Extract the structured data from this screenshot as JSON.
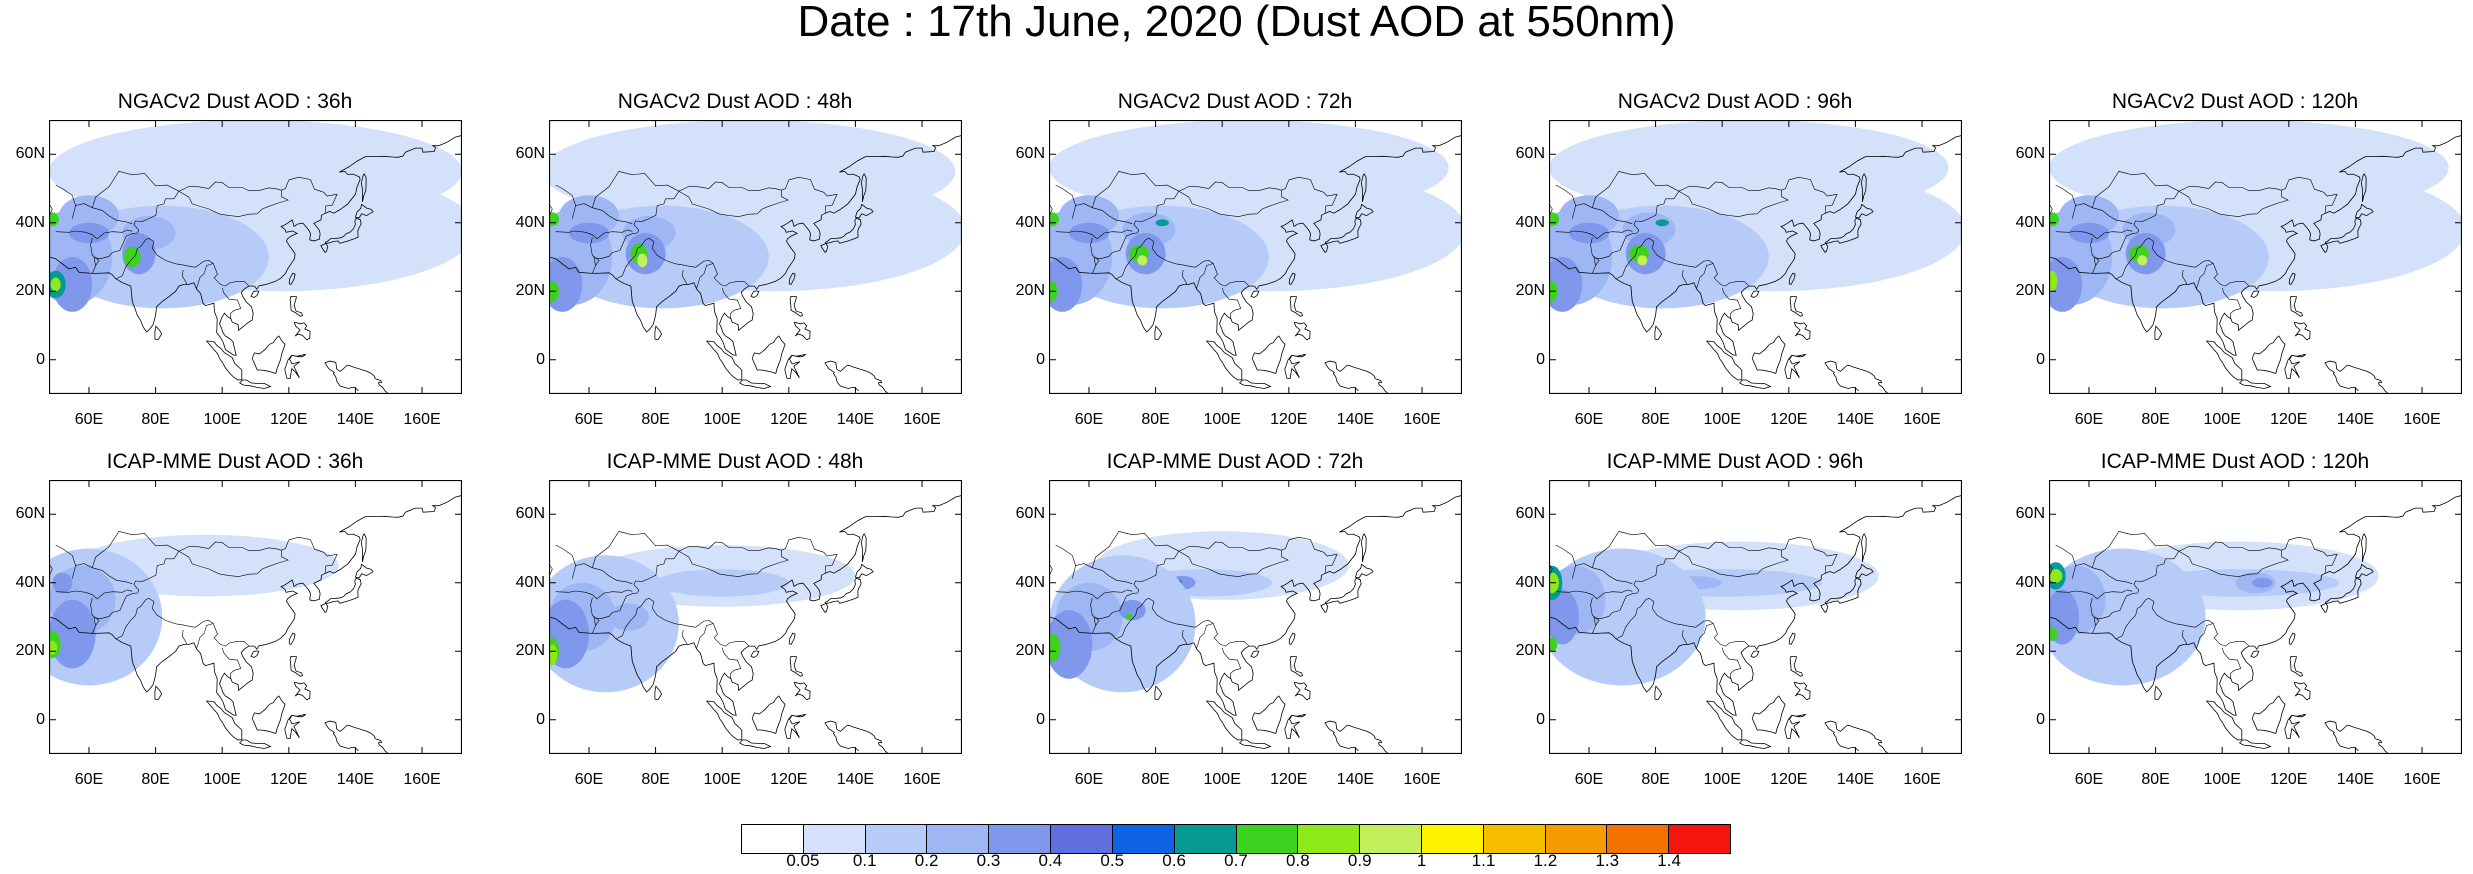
{
  "title": "Date : 17th June, 2020 (Dust AOD at 550nm)",
  "x_ticks": [
    "60E",
    "80E",
    "100E",
    "120E",
    "140E",
    "160E"
  ],
  "x_tick_values": [
    60,
    80,
    100,
    120,
    140,
    160
  ],
  "y_ticks": [
    "60N",
    "40N",
    "20N",
    "0"
  ],
  "y_tick_values": [
    60,
    40,
    20,
    0
  ],
  "map_extent": {
    "lon": [
      48,
      172
    ],
    "lat": [
      -10,
      70
    ]
  },
  "panels": [
    {
      "title": "NGACv2 Dust AOD : 36h",
      "model": "NGACv2",
      "lead": 36
    },
    {
      "title": "NGACv2 Dust AOD : 48h",
      "model": "NGACv2",
      "lead": 48
    },
    {
      "title": "NGACv2 Dust AOD : 72h",
      "model": "NGACv2",
      "lead": 72
    },
    {
      "title": "NGACv2 Dust AOD : 96h",
      "model": "NGACv2",
      "lead": 96
    },
    {
      "title": "NGACv2 Dust AOD : 120h",
      "model": "NGACv2",
      "lead": 120
    },
    {
      "title": "ICAP-MME Dust AOD : 36h",
      "model": "ICAP-MME",
      "lead": 36
    },
    {
      "title": "ICAP-MME Dust AOD : 48h",
      "model": "ICAP-MME",
      "lead": 48
    },
    {
      "title": "ICAP-MME Dust AOD : 72h",
      "model": "ICAP-MME",
      "lead": 72
    },
    {
      "title": "ICAP-MME Dust AOD : 96h",
      "model": "ICAP-MME",
      "lead": 96
    },
    {
      "title": "ICAP-MME Dust AOD : 120h",
      "model": "ICAP-MME",
      "lead": 120
    }
  ],
  "colorbar": {
    "labels": [
      "0.05",
      "0.1",
      "0.2",
      "0.3",
      "0.4",
      "0.5",
      "0.6",
      "0.7",
      "0.8",
      "0.9",
      "1",
      "1.1",
      "1.2",
      "1.3",
      "1.4"
    ],
    "colors": [
      "#ffffff",
      "#d3e1fb",
      "#b7cbf8",
      "#9fb6f4",
      "#7f98ec",
      "#5f6fe0",
      "#0e62e6",
      "#069a95",
      "#3ed220",
      "#8ee81a",
      "#c2ef5a",
      "#fff200",
      "#f6bd00",
      "#f49b00",
      "#f47300",
      "#f6150e"
    ]
  }
}
